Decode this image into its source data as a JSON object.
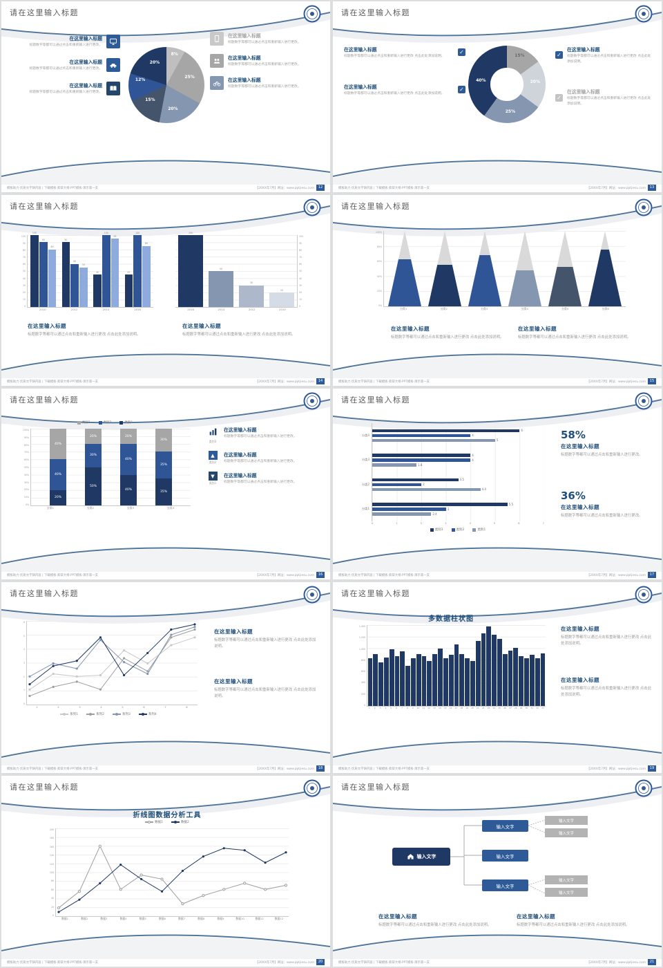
{
  "common": {
    "slide_title": "请在这里输入标题",
    "block_title": "在这里输入标题",
    "body_text": "标题数字等都可以通过点击和重新输入进行更改 点击此处添加说明。",
    "body_text_short": "标题数字等都可以通过点击和重新输入进行更改。",
    "footer_left": "模板助力·优质文字铸内容 | 下载模板·索取大纲·PPT模板·演示第一支",
    "footer_right": "【20XX年7月】网址：www.pptjiesu.com",
    "input_text": "输入文字",
    "check": "✓"
  },
  "colors": {
    "navy": "#203864",
    "blue": "#2f5597",
    "slate": "#8496b0",
    "steel": "#44546a",
    "gray": "#a6a6a6",
    "lightgray": "#bfbfbf",
    "palegray": "#d6dce5",
    "accent": "#1f4e79"
  },
  "slides": [
    {
      "page": "12",
      "chart_data": {
        "type": "pie",
        "values": [
          8,
          25,
          20,
          15,
          12,
          20
        ],
        "labels": [
          "8%",
          "25%",
          "20%",
          "15%",
          "12%",
          "20%"
        ],
        "colors": [
          "#bfbfbf",
          "#a6a6a6",
          "#8496b0",
          "#44546a",
          "#2f5597",
          "#203864"
        ]
      }
    },
    {
      "page": "13",
      "chart_data": {
        "type": "donut",
        "values": [
          15,
          20,
          25,
          40
        ],
        "labels": [
          "15%",
          "20%",
          "25%",
          "40%"
        ],
        "colors": [
          "#a6a6a6",
          "#cfd4da",
          "#8496b0",
          "#203864"
        ]
      }
    },
    {
      "page": "14",
      "chart_data": {
        "left": {
          "type": "bar",
          "categories": [
            "2010",
            "2012",
            "2014",
            "2016"
          ],
          "groups": [
            [
              100,
              90,
              80
            ],
            [
              90,
              60,
              55
            ],
            [
              45,
              100,
              95
            ],
            [
              45,
              100,
              85
            ]
          ],
          "colors": [
            "#203864",
            "#2f5597",
            "#8faadc"
          ],
          "max": 100,
          "show_labels": true,
          "yticks": [
            "100",
            "90",
            "80",
            "70",
            "60",
            "50",
            "40",
            "30",
            "20",
            "10",
            "0"
          ]
        },
        "right": {
          "type": "bar",
          "categories": [
            "2016",
            "2014",
            "2012",
            "2010"
          ],
          "groups": [
            [
              100
            ],
            [
              50
            ],
            [
              30
            ],
            [
              20
            ]
          ],
          "group_colors": [
            "#203864",
            "#8496b0",
            "#adb9ca",
            "#d6dce5"
          ],
          "max": 100,
          "show_labels": true,
          "yticks": [
            "100",
            "90",
            "80",
            "70",
            "60",
            "50",
            "40",
            "30",
            "20",
            "10",
            "0"
          ]
        }
      }
    },
    {
      "page": "15",
      "chart_data": {
        "type": "pyramid",
        "categories": [
          "分类1",
          "分类2",
          "分类3",
          "分类4",
          "分类5",
          "分类6"
        ],
        "values": [
          62,
          55,
          68,
          48,
          52,
          75
        ],
        "colors": [
          "#2f5597",
          "#203864",
          "#2f5597",
          "#8496b0",
          "#44546a",
          "#203864"
        ],
        "top_color": "#d9d9d9",
        "yticks": [
          "100%",
          "80%",
          "60%",
          "40%",
          "20%",
          "0%"
        ]
      }
    },
    {
      "page": "16",
      "chart_data": {
        "type": "stacked-bar",
        "categories": [
          "分类1",
          "分类2",
          "分类3",
          "分类4"
        ],
        "series_order": [
          "类别1",
          "类别2",
          "类别3"
        ],
        "stacks": [
          [
            20,
            40,
            40
          ],
          [
            50,
            30,
            20
          ],
          [
            40,
            40,
            20
          ],
          [
            35,
            35,
            30
          ]
        ],
        "colors": [
          "#203864",
          "#2f5597",
          "#a6a6a6"
        ],
        "yticks": [
          "100%",
          "90%",
          "80%",
          "70%",
          "60%",
          "50%",
          "40%",
          "30%",
          "20%",
          "10%",
          "0%"
        ],
        "legend": [
          {
            "label": "类别3",
            "color": "#a6a6a6"
          },
          {
            "label": "类别2",
            "color": "#2f5597"
          },
          {
            "label": "类别1",
            "color": "#203864"
          }
        ]
      },
      "right_items": [
        {
          "label": "类别3"
        },
        {
          "label": "类别2"
        },
        {
          "label": "类别1"
        }
      ]
    },
    {
      "page": "17",
      "chart_data": {
        "type": "hbar",
        "categories": [
          "分类4",
          "分类3",
          "分类2",
          "分类1"
        ],
        "groups": [
          [
            6,
            4,
            5
          ],
          [
            4,
            4,
            1.8
          ],
          [
            3.5,
            2,
            4.4
          ],
          [
            5.5,
            3,
            2.4
          ]
        ],
        "colors": [
          "#203864",
          "#2f5597",
          "#8496b0"
        ],
        "max": 7,
        "xticks": [
          "0",
          "1",
          "2",
          "3",
          "4",
          "5",
          "6",
          "7"
        ],
        "legend": [
          {
            "label": "类别3",
            "color": "#203864"
          },
          {
            "label": "类别2",
            "color": "#2f5597"
          },
          {
            "label": "类别1",
            "color": "#8496b0"
          }
        ]
      },
      "stats": [
        {
          "value": "58%"
        },
        {
          "value": "36%"
        }
      ]
    },
    {
      "page": "18",
      "chart_data": {
        "type": "line",
        "max": 6,
        "xticks": [
          "1",
          "2",
          "3",
          "4",
          "5",
          "6",
          "7",
          "8"
        ],
        "yticks": [
          "6",
          "5",
          "4",
          "3",
          "2",
          "1",
          "0"
        ],
        "series": [
          {
            "name": "系列1",
            "color": "#c9c9c9",
            "values": [
              1,
              2.2,
              2,
              2.1,
              4,
              3,
              4.4,
              5
            ]
          },
          {
            "name": "系列2",
            "color": "#9e9e9e",
            "values": [
              0.5,
              1.2,
              1.6,
              1,
              3.4,
              2.4,
              5,
              5.6
            ]
          },
          {
            "name": "系列3",
            "color": "#8496b0",
            "values": [
              2,
              3,
              2.6,
              4.8,
              3.1,
              2.2,
              5.2,
              5.8
            ]
          },
          {
            "name": "系列4",
            "color": "#203864",
            "values": [
              1.4,
              2.8,
              3.2,
              5,
              2.1,
              3.8,
              5.6,
              6
            ]
          }
        ],
        "legend": [
          {
            "label": "系列1",
            "color": "#c9c9c9",
            "line": true
          },
          {
            "label": "系列2",
            "color": "#9e9e9e",
            "line": true
          },
          {
            "label": "系列3",
            "color": "#8496b0",
            "line": true
          },
          {
            "label": "系列4",
            "color": "#203864",
            "line": true
          }
        ]
      }
    },
    {
      "page": "19",
      "chart_data": {
        "type": "bar",
        "title": "多数据柱状图",
        "colors": [
          "#203864"
        ],
        "max": 1400,
        "values": [
          820,
          900,
          760,
          840,
          980,
          860,
          950,
          700,
          830,
          900,
          860,
          780,
          900,
          990,
          820,
          880,
          1060,
          900,
          830,
          780,
          1120,
          1260,
          1380,
          1230,
          1160,
          900,
          960,
          1010,
          860,
          820,
          890,
          830,
          910
        ],
        "yticks": [
          "1,400",
          "1,200",
          "1,000",
          "800",
          "600",
          "400",
          "200",
          "0"
        ],
        "xticks": [
          "1",
          "2",
          "3",
          "4",
          "5",
          "6",
          "7",
          "8",
          "9",
          "10",
          "11",
          "12",
          "13",
          "14",
          "15",
          "16",
          "17",
          "18",
          "19",
          "20",
          "21",
          "22",
          "23",
          "24",
          "25",
          "26",
          "27",
          "28",
          "29",
          "30",
          "31",
          "32",
          "33"
        ]
      }
    },
    {
      "page": "20",
      "chart_data": {
        "type": "line",
        "title": "折线图数据分析工具",
        "max": 200,
        "xticks": [
          "数据1",
          "数据2",
          "数据3",
          "数据4",
          "数据5",
          "数据6",
          "数据7",
          "数据8",
          "数据9",
          "数据10",
          "数据11",
          "数据12"
        ],
        "yticks": [
          "200",
          "180",
          "160",
          "140",
          "120",
          "100",
          "80",
          "60",
          "40",
          "20",
          "0"
        ],
        "series": [
          {
            "name": "数据1",
            "color": "#9e9e9e",
            "open": true,
            "values": [
              15,
              55,
              165,
              60,
              95,
              85,
              25,
              45,
              60,
              75,
              60,
              70
            ]
          },
          {
            "name": "数据2",
            "color": "#203864",
            "values": [
              5,
              35,
              75,
              120,
              85,
              55,
              105,
              140,
              160,
              155,
              125,
              150
            ]
          }
        ],
        "legend": [
          {
            "label": "数据1",
            "color": "#9e9e9e",
            "line": true,
            "open": true
          },
          {
            "label": "数据2",
            "color": "#203864",
            "line": true
          }
        ]
      }
    },
    {
      "page": "21",
      "diagram": {
        "home_label": "输入文字",
        "mid_buttons": [
          "输入文字",
          "输入文字",
          "输入文字"
        ],
        "gray_boxes": [
          "输入文字",
          "输入文字",
          "输入文字",
          "输入文字"
        ]
      }
    }
  ]
}
